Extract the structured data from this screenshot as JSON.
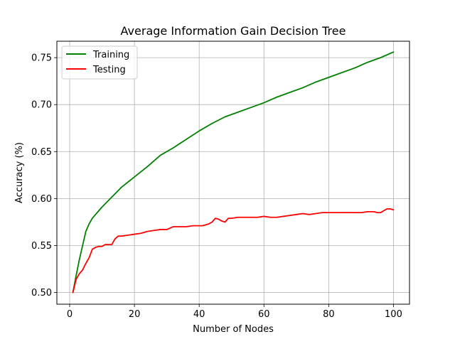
{
  "chart_data": {
    "type": "line",
    "title": "Average Information Gain Decision Tree",
    "xlabel": "Number of Nodes",
    "ylabel": "Accuracy (%)",
    "xlim": [
      -3.95,
      104.95
    ],
    "ylim": [
      0.4875,
      0.7675
    ],
    "xticks": [
      0,
      20,
      40,
      60,
      80,
      100
    ],
    "yticks": [
      0.5,
      0.55,
      0.6,
      0.65,
      0.7,
      0.75
    ],
    "grid": true,
    "legend": "top-left",
    "series": [
      {
        "name": "Training",
        "color": "#008000",
        "points": [
          [
            1,
            0.5
          ],
          [
            2,
            0.518
          ],
          [
            3,
            0.535
          ],
          [
            4,
            0.55
          ],
          [
            5,
            0.565
          ],
          [
            6,
            0.573
          ],
          [
            7,
            0.579
          ],
          [
            8,
            0.583
          ],
          [
            9,
            0.587
          ],
          [
            10,
            0.591
          ],
          [
            12,
            0.598
          ],
          [
            14,
            0.605
          ],
          [
            16,
            0.612
          ],
          [
            20,
            0.623
          ],
          [
            24,
            0.634
          ],
          [
            28,
            0.646
          ],
          [
            32,
            0.654
          ],
          [
            36,
            0.663
          ],
          [
            40,
            0.672
          ],
          [
            44,
            0.68
          ],
          [
            48,
            0.687
          ],
          [
            52,
            0.692
          ],
          [
            56,
            0.697
          ],
          [
            60,
            0.702
          ],
          [
            64,
            0.708
          ],
          [
            68,
            0.713
          ],
          [
            72,
            0.718
          ],
          [
            76,
            0.724
          ],
          [
            80,
            0.729
          ],
          [
            84,
            0.734
          ],
          [
            88,
            0.739
          ],
          [
            92,
            0.745
          ],
          [
            96,
            0.75
          ],
          [
            100,
            0.756
          ]
        ]
      },
      {
        "name": "Testing",
        "color": "#ff0000",
        "points": [
          [
            1,
            0.5
          ],
          [
            2,
            0.514
          ],
          [
            3,
            0.52
          ],
          [
            4,
            0.524
          ],
          [
            5,
            0.531
          ],
          [
            6,
            0.537
          ],
          [
            7,
            0.546
          ],
          [
            8,
            0.548
          ],
          [
            9,
            0.549
          ],
          [
            10,
            0.549
          ],
          [
            11,
            0.551
          ],
          [
            12,
            0.551
          ],
          [
            13,
            0.551
          ],
          [
            14,
            0.557
          ],
          [
            15,
            0.56
          ],
          [
            16,
            0.56
          ],
          [
            18,
            0.561
          ],
          [
            20,
            0.562
          ],
          [
            22,
            0.563
          ],
          [
            24,
            0.565
          ],
          [
            26,
            0.566
          ],
          [
            28,
            0.567
          ],
          [
            30,
            0.567
          ],
          [
            32,
            0.57
          ],
          [
            34,
            0.57
          ],
          [
            36,
            0.57
          ],
          [
            38,
            0.571
          ],
          [
            40,
            0.571
          ],
          [
            41,
            0.571
          ],
          [
            42,
            0.572
          ],
          [
            43,
            0.573
          ],
          [
            44,
            0.575
          ],
          [
            45,
            0.579
          ],
          [
            46,
            0.578
          ],
          [
            47,
            0.576
          ],
          [
            48,
            0.575
          ],
          [
            49,
            0.579
          ],
          [
            50,
            0.579
          ],
          [
            52,
            0.58
          ],
          [
            54,
            0.58
          ],
          [
            56,
            0.58
          ],
          [
            58,
            0.58
          ],
          [
            60,
            0.581
          ],
          [
            62,
            0.58
          ],
          [
            64,
            0.58
          ],
          [
            66,
            0.581
          ],
          [
            68,
            0.582
          ],
          [
            70,
            0.583
          ],
          [
            72,
            0.584
          ],
          [
            74,
            0.583
          ],
          [
            76,
            0.584
          ],
          [
            78,
            0.585
          ],
          [
            80,
            0.585
          ],
          [
            82,
            0.585
          ],
          [
            84,
            0.585
          ],
          [
            86,
            0.585
          ],
          [
            88,
            0.585
          ],
          [
            90,
            0.585
          ],
          [
            92,
            0.586
          ],
          [
            94,
            0.586
          ],
          [
            95,
            0.585
          ],
          [
            96,
            0.585
          ],
          [
            97,
            0.587
          ],
          [
            98,
            0.589
          ],
          [
            99,
            0.589
          ],
          [
            100,
            0.588
          ]
        ]
      }
    ]
  }
}
